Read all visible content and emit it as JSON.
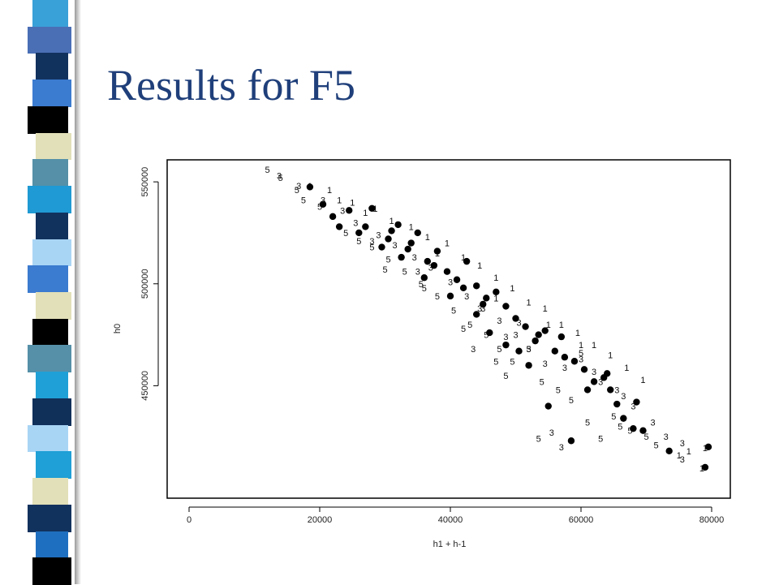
{
  "slide": {
    "title": "Results for F5",
    "stripe_colors": [
      "#3aa0d8",
      "#4a6fb5",
      "#12325e",
      "#3b7bd0",
      "#000000",
      "#e2e0b8",
      "#5590a8",
      "#1f9ad4",
      "#12325e",
      "#a9d5f5",
      "#3b7bd0",
      "#e2e0b8",
      "#000000",
      "#5590a8",
      "#1fa0d6",
      "#10305a",
      "#a9d5f5",
      "#1fa0d6",
      "#e2e0b8",
      "#12325e",
      "#1f6fc0",
      "#000000"
    ]
  },
  "chart_data": {
    "type": "scatter",
    "title": "",
    "xlabel": "h1 + h-1",
    "ylabel": "h0",
    "xlim": [
      0,
      80000
    ],
    "ylim": [
      404000,
      560000
    ],
    "x_ticks": [
      "0",
      "20000",
      "40000",
      "60000",
      "80000"
    ],
    "y_ticks": [
      "450000",
      "500000",
      "550000"
    ],
    "grid": false,
    "legend": "none",
    "marker_symbols": [
      "1",
      "3",
      "5",
      "dot"
    ],
    "series": [
      {
        "marker": "1",
        "points": [
          [
            18500,
            548000
          ],
          [
            21500,
            546000
          ],
          [
            25000,
            540000
          ],
          [
            28500,
            537000
          ],
          [
            31000,
            531000
          ],
          [
            34000,
            528000
          ],
          [
            36500,
            523000
          ],
          [
            39500,
            520000
          ],
          [
            42000,
            513000
          ],
          [
            44500,
            509000
          ],
          [
            47000,
            503000
          ],
          [
            49500,
            498000
          ],
          [
            52000,
            491000
          ],
          [
            54500,
            488000
          ],
          [
            57000,
            480000
          ],
          [
            59500,
            476000
          ],
          [
            62000,
            470000
          ],
          [
            64500,
            465000
          ],
          [
            67000,
            459000
          ],
          [
            69500,
            453000
          ],
          [
            76500,
            418000
          ],
          [
            79000,
            419500
          ],
          [
            78500,
            409500
          ],
          [
            75000,
            416000
          ],
          [
            60000,
            470000
          ],
          [
            55000,
            480000
          ],
          [
            47000,
            493000
          ],
          [
            38000,
            515000
          ],
          [
            27000,
            535000
          ],
          [
            23000,
            541000
          ]
        ]
      },
      {
        "marker": "3",
        "points": [
          [
            13800,
            553000
          ],
          [
            16800,
            548000
          ],
          [
            20500,
            541000
          ],
          [
            23500,
            536000
          ],
          [
            25500,
            530000
          ],
          [
            29000,
            524000
          ],
          [
            31500,
            519000
          ],
          [
            34500,
            513000
          ],
          [
            37000,
            508000
          ],
          [
            40000,
            501000
          ],
          [
            42500,
            494000
          ],
          [
            45000,
            488000
          ],
          [
            47500,
            482000
          ],
          [
            50000,
            475000
          ],
          [
            52000,
            468000
          ],
          [
            54500,
            461000
          ],
          [
            57500,
            459000
          ],
          [
            60000,
            463000
          ],
          [
            63000,
            452000
          ],
          [
            65500,
            448000
          ],
          [
            68000,
            440000
          ],
          [
            71000,
            432000
          ],
          [
            73000,
            425000
          ],
          [
            75500,
            422000
          ],
          [
            75500,
            414000
          ],
          [
            57000,
            420000
          ],
          [
            55500,
            427000
          ],
          [
            43500,
            468000
          ],
          [
            35000,
            506000
          ],
          [
            28000,
            521000
          ],
          [
            48500,
            474000
          ],
          [
            50500,
            481000
          ],
          [
            62000,
            457000
          ],
          [
            66500,
            445000
          ],
          [
            44500,
            488000
          ]
        ]
      },
      {
        "marker": "5",
        "points": [
          [
            12000,
            556000
          ],
          [
            14000,
            552000
          ],
          [
            16500,
            546000
          ],
          [
            17500,
            541000
          ],
          [
            20000,
            538000
          ],
          [
            22000,
            533000
          ],
          [
            24000,
            525000
          ],
          [
            26000,
            521000
          ],
          [
            28000,
            518000
          ],
          [
            30500,
            512000
          ],
          [
            33000,
            506000
          ],
          [
            35500,
            500000
          ],
          [
            38000,
            494000
          ],
          [
            40500,
            487000
          ],
          [
            43000,
            480000
          ],
          [
            45500,
            475000
          ],
          [
            47500,
            468000
          ],
          [
            49500,
            462000
          ],
          [
            52000,
            468000
          ],
          [
            54000,
            452000
          ],
          [
            56500,
            448000
          ],
          [
            58500,
            443000
          ],
          [
            61000,
            432000
          ],
          [
            63000,
            424000
          ],
          [
            65000,
            435000
          ],
          [
            67500,
            428000
          ],
          [
            70000,
            425000
          ],
          [
            71500,
            421000
          ],
          [
            60000,
            466000
          ],
          [
            53500,
            424000
          ],
          [
            47000,
            462000
          ],
          [
            42000,
            478000
          ],
          [
            36000,
            498000
          ],
          [
            30000,
            507000
          ],
          [
            48500,
            455000
          ],
          [
            66000,
            430000
          ]
        ]
      },
      {
        "marker": "dot",
        "points": [
          [
            18500,
            547500
          ],
          [
            20500,
            539000
          ],
          [
            22000,
            533000
          ],
          [
            24500,
            536000
          ],
          [
            27000,
            528000
          ],
          [
            28000,
            537000
          ],
          [
            30500,
            522000
          ],
          [
            32000,
            529000
          ],
          [
            33500,
            517000
          ],
          [
            35000,
            525000
          ],
          [
            36500,
            511000
          ],
          [
            38000,
            516000
          ],
          [
            39500,
            506000
          ],
          [
            41000,
            502000
          ],
          [
            42500,
            511000
          ],
          [
            44000,
            499000
          ],
          [
            45500,
            493000
          ],
          [
            47000,
            496000
          ],
          [
            48500,
            489000
          ],
          [
            50000,
            483000
          ],
          [
            51500,
            479000
          ],
          [
            53000,
            472000
          ],
          [
            54500,
            477000
          ],
          [
            56000,
            467000
          ],
          [
            57500,
            464000
          ],
          [
            59000,
            462000
          ],
          [
            60500,
            458000
          ],
          [
            62000,
            452000
          ],
          [
            63500,
            454000
          ],
          [
            64500,
            448000
          ],
          [
            65500,
            441000
          ],
          [
            66500,
            434000
          ],
          [
            68000,
            429000
          ],
          [
            69500,
            428000
          ],
          [
            73500,
            418000
          ],
          [
            79000,
            410000
          ],
          [
            79500,
            420000
          ],
          [
            58500,
            423000
          ],
          [
            55000,
            440000
          ],
          [
            48500,
            470000
          ],
          [
            50500,
            467000
          ],
          [
            46000,
            476000
          ],
          [
            44000,
            485000
          ],
          [
            40000,
            494000
          ],
          [
            36000,
            503000
          ],
          [
            32500,
            513000
          ],
          [
            29500,
            518000
          ],
          [
            26000,
            525000
          ],
          [
            23000,
            528000
          ],
          [
            52000,
            460000
          ],
          [
            61000,
            448000
          ],
          [
            68500,
            442000
          ],
          [
            64000,
            456000
          ],
          [
            57000,
            474000
          ],
          [
            42000,
            498000
          ],
          [
            37500,
            509000
          ],
          [
            34000,
            520000
          ],
          [
            31000,
            526000
          ],
          [
            45000,
            490000
          ],
          [
            53500,
            475000
          ]
        ]
      }
    ]
  }
}
